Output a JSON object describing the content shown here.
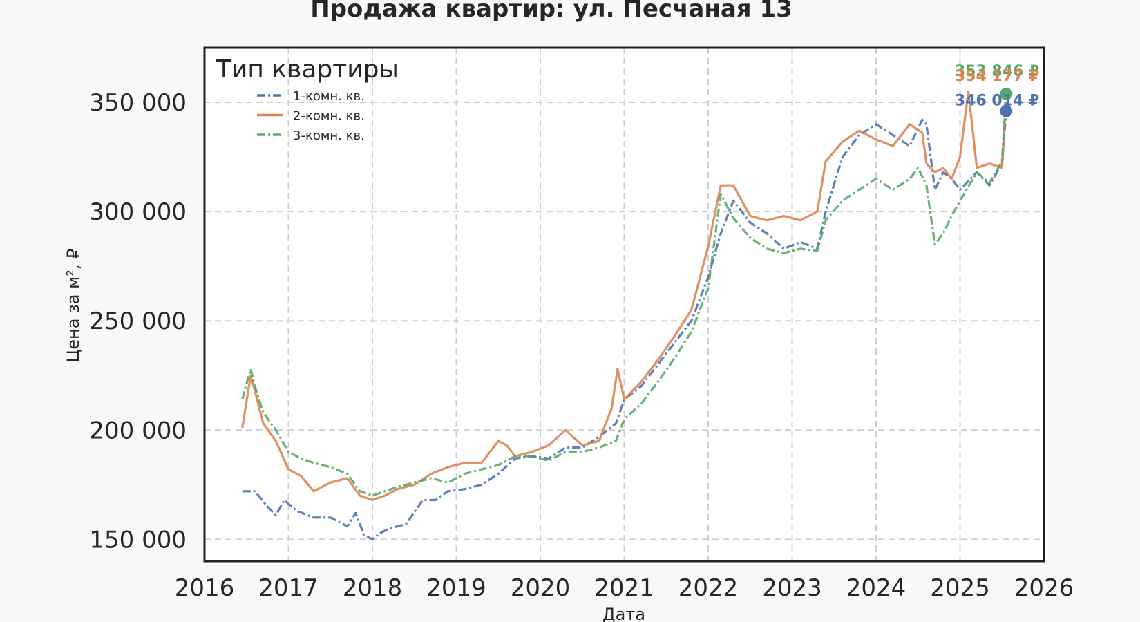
{
  "chart_data": {
    "type": "line",
    "title": "Продажа квартир: ул. Песчаная 13",
    "xlabel": "Дата",
    "ylabel": "Цена за м², ₽",
    "xlim": [
      2016,
      2026
    ],
    "ylim": [
      140000,
      375000
    ],
    "x_ticks": [
      2016,
      2017,
      2018,
      2019,
      2020,
      2021,
      2022,
      2023,
      2024,
      2025,
      2026
    ],
    "y_ticks": [
      150000,
      200000,
      250000,
      300000,
      350000
    ],
    "y_tick_labels": [
      "150 000",
      "200 000",
      "250 000",
      "300 000",
      "350 000"
    ],
    "grid": true,
    "legend_title": "Тип квартиры",
    "legend_position": "top-left",
    "series": [
      {
        "name": "1-комн. кв.",
        "color": "#4c72b0",
        "style": "dashdot",
        "x": [
          2016.45,
          2016.6,
          2016.75,
          2016.85,
          2016.95,
          2017.1,
          2017.3,
          2017.5,
          2017.7,
          2017.8,
          2017.9,
          2018.0,
          2018.1,
          2018.2,
          2018.4,
          2018.6,
          2018.75,
          2018.9,
          2019.1,
          2019.3,
          2019.5,
          2019.7,
          2019.9,
          2020.1,
          2020.3,
          2020.5,
          2020.7,
          2020.9,
          2021.0,
          2021.2,
          2021.4,
          2021.6,
          2021.8,
          2022.0,
          2022.15,
          2022.3,
          2022.5,
          2022.7,
          2022.9,
          2023.1,
          2023.3,
          2023.4,
          2023.6,
          2023.8,
          2024.0,
          2024.2,
          2024.4,
          2024.55,
          2024.6,
          2024.7,
          2024.8,
          2024.9,
          2025.0,
          2025.2,
          2025.35,
          2025.5,
          2025.55
        ],
        "values": [
          172000,
          172000,
          165000,
          161000,
          168000,
          163000,
          160000,
          160000,
          156000,
          162000,
          152000,
          150000,
          153000,
          155000,
          157000,
          168000,
          168000,
          172000,
          173000,
          175000,
          180000,
          187000,
          188000,
          187000,
          192000,
          192000,
          197000,
          203000,
          214000,
          220000,
          230000,
          240000,
          250000,
          270000,
          290000,
          305000,
          295000,
          290000,
          283000,
          286000,
          283000,
          300000,
          325000,
          335000,
          340000,
          335000,
          330000,
          342000,
          340000,
          310000,
          318000,
          315000,
          310000,
          318000,
          312000,
          322000,
          346014
        ]
      },
      {
        "name": "2-комн. кв.",
        "color": "#dd8452",
        "style": "solid",
        "x": [
          2016.45,
          2016.55,
          2016.6,
          2016.7,
          2016.85,
          2017.0,
          2017.15,
          2017.3,
          2017.5,
          2017.7,
          2017.85,
          2018.0,
          2018.15,
          2018.3,
          2018.5,
          2018.7,
          2018.9,
          2019.1,
          2019.3,
          2019.5,
          2019.6,
          2019.7,
          2019.9,
          2020.1,
          2020.3,
          2020.5,
          2020.7,
          2020.85,
          2020.92,
          2021.0,
          2021.2,
          2021.4,
          2021.6,
          2021.8,
          2022.0,
          2022.15,
          2022.3,
          2022.5,
          2022.7,
          2022.9,
          2023.1,
          2023.3,
          2023.4,
          2023.6,
          2023.8,
          2024.0,
          2024.2,
          2024.4,
          2024.55,
          2024.6,
          2024.7,
          2024.8,
          2024.9,
          2025.0,
          2025.1,
          2025.2,
          2025.35,
          2025.5,
          2025.55
        ],
        "values": [
          201000,
          225000,
          218000,
          203000,
          195000,
          182000,
          179000,
          172000,
          176000,
          178000,
          170000,
          168000,
          170000,
          173000,
          175000,
          180000,
          183000,
          185000,
          185000,
          195000,
          193000,
          188000,
          190000,
          193000,
          200000,
          193000,
          195000,
          210000,
          228000,
          214000,
          222000,
          232000,
          243000,
          255000,
          284000,
          312000,
          312000,
          298000,
          296000,
          298000,
          296000,
          300000,
          323000,
          332000,
          337000,
          333000,
          330000,
          340000,
          336000,
          322000,
          318000,
          320000,
          315000,
          325000,
          355000,
          320000,
          322000,
          320000,
          354177
        ]
      },
      {
        "name": "3-комн. кв.",
        "color": "#55a868",
        "style": "dashdot",
        "x": [
          2016.45,
          2016.55,
          2016.6,
          2016.7,
          2016.85,
          2017.0,
          2017.15,
          2017.3,
          2017.5,
          2017.7,
          2017.85,
          2018.0,
          2018.15,
          2018.3,
          2018.5,
          2018.7,
          2018.9,
          2019.1,
          2019.3,
          2019.5,
          2019.7,
          2019.9,
          2020.1,
          2020.3,
          2020.5,
          2020.7,
          2020.9,
          2021.0,
          2021.2,
          2021.4,
          2021.6,
          2021.8,
          2022.0,
          2022.15,
          2022.3,
          2022.5,
          2022.7,
          2022.9,
          2023.1,
          2023.3,
          2023.4,
          2023.6,
          2023.8,
          2024.0,
          2024.2,
          2024.4,
          2024.5,
          2024.6,
          2024.7,
          2024.8,
          2024.9,
          2025.0,
          2025.2,
          2025.35,
          2025.5,
          2025.55
        ],
        "values": [
          214000,
          228000,
          220000,
          208000,
          200000,
          190000,
          187000,
          185000,
          183000,
          180000,
          172000,
          170000,
          172000,
          174000,
          176000,
          178000,
          176000,
          180000,
          182000,
          184000,
          188000,
          188000,
          186000,
          190000,
          190000,
          192000,
          195000,
          205000,
          212000,
          222000,
          233000,
          245000,
          265000,
          308000,
          297000,
          288000,
          283000,
          281000,
          283000,
          282000,
          296000,
          305000,
          310000,
          315000,
          310000,
          315000,
          320000,
          312000,
          285000,
          290000,
          298000,
          305000,
          318000,
          313000,
          323000,
          353846
        ]
      }
    ],
    "end_labels": [
      {
        "series": "3-комн. кв.",
        "text": "353 846 ₽",
        "value": 353846,
        "color": "#55a868"
      },
      {
        "series": "2-комн. кв.",
        "text": "354 177 ₽",
        "value": 354177,
        "color": "#dd8452"
      },
      {
        "series": "1-комн. кв.",
        "text": "346 014 ₽",
        "value": 346014,
        "color": "#4c72b0"
      }
    ]
  }
}
